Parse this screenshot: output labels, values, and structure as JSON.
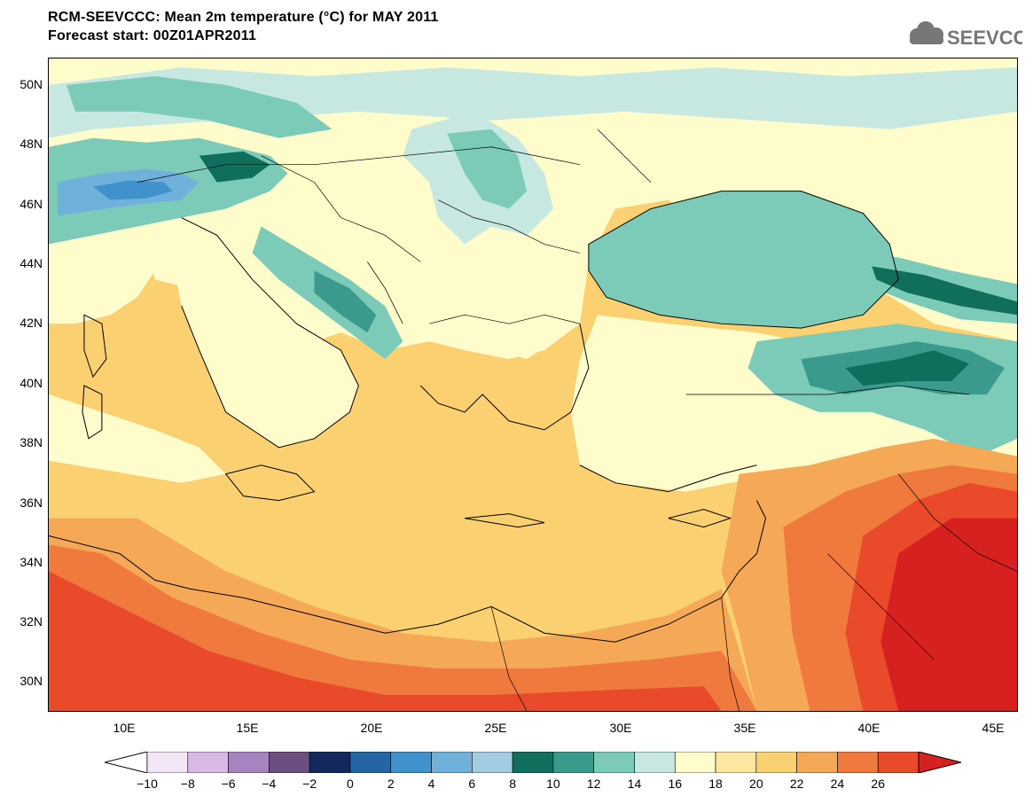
{
  "title": {
    "line1": "RCM-SEEVCCC: Mean 2m temperature (°C) for MAY 2011",
    "line2": "Forecast start: 00Z01APR2011"
  },
  "logo": {
    "text": "SEEVCCC",
    "icon": "cloud-icon",
    "color": "#777777"
  },
  "map": {
    "variable": "Mean 2m temperature",
    "unit": "°C",
    "lon_range": [
      7,
      46
    ],
    "lat_range": [
      29,
      51
    ],
    "lat_ticks": [
      "50N",
      "48N",
      "46N",
      "44N",
      "42N",
      "40N",
      "38N",
      "36N",
      "34N",
      "32N",
      "30N"
    ],
    "lon_ticks": [
      "10E",
      "15E",
      "20E",
      "25E",
      "30E",
      "35E",
      "40E",
      "45E"
    ]
  },
  "colorbar": {
    "labels": [
      "−10",
      "−8",
      "−6",
      "−4",
      "−2",
      "0",
      "2",
      "4",
      "6",
      "8",
      "10",
      "12",
      "14",
      "16",
      "18",
      "20",
      "22",
      "24",
      "26"
    ],
    "colors": [
      "#f2e6f7",
      "#d9b8e6",
      "#a883c2",
      "#6b4f80",
      "#13285f",
      "#2366a3",
      "#4191cc",
      "#6fb1db",
      "#a2cbe4",
      "#0f6e5c",
      "#3a9b8c",
      "#7ccbb9",
      "#c6e8e0",
      "#fefccb",
      "#fde6a0",
      "#fad070",
      "#f5a855",
      "#f07a3d",
      "#e84a2a"
    ],
    "under_color": "#ffffff",
    "over_color": "#d72020"
  },
  "regions": {
    "sea": "#fad070",
    "warm_sea": "#f5a855",
    "land_mild": "#fefccb",
    "land_cool": "#c6e8e0",
    "mountain": "#7ccbb9",
    "high_mountain": "#3a9b8c",
    "peaks": "#0f6e5c",
    "alps_cold": "#4191cc",
    "desert": "#f07a3d",
    "desert_hot": "#e84a2a",
    "arabia_hot": "#d72020"
  }
}
